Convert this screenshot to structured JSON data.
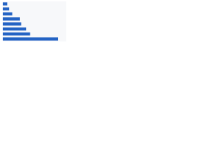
{
  "chart_data": {
    "type": "bar",
    "orientation": "horizontal",
    "categories": [
      null,
      null,
      null,
      null,
      null,
      null,
      null,
      null
    ],
    "values": [
      7,
      10,
      15,
      27,
      29,
      37,
      43,
      87
    ],
    "color": "#2463c4",
    "xlim": [
      0,
      100
    ]
  }
}
